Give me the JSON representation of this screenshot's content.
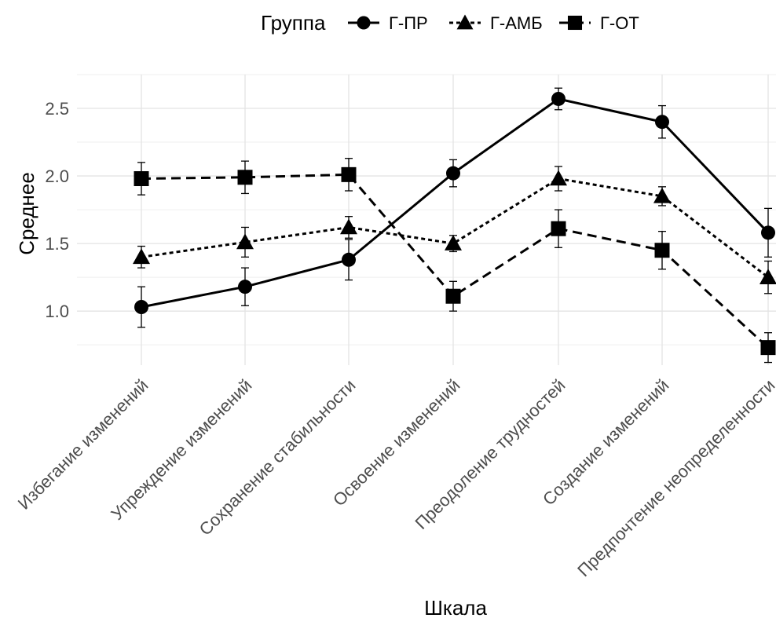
{
  "chart_data": {
    "type": "line",
    "xlabel": "Шкала",
    "ylabel": "Среднее",
    "categories": [
      "Избегание изменений",
      "Упреждение изменений",
      "Сохранение стабильности",
      "Освоение изменений",
      "Преодоление трудностей",
      "Создание изменений",
      "Предпочтение неопределенности"
    ],
    "y_ticks": [
      "1.0",
      "1.5",
      "2.0",
      "2.5"
    ],
    "ylim": [
      0.6,
      2.75
    ],
    "grid": true,
    "legend": {
      "title": "Группа",
      "position": "top"
    },
    "series": [
      {
        "name": "Г-ПР",
        "marker": "circle",
        "dash": "solid",
        "values": [
          1.03,
          1.18,
          1.38,
          2.02,
          2.57,
          2.4,
          1.58
        ],
        "err": [
          0.15,
          0.14,
          0.15,
          0.1,
          0.08,
          0.12,
          0.18
        ]
      },
      {
        "name": "Г-АМБ",
        "marker": "triangle",
        "dash": "dotted",
        "values": [
          1.4,
          1.51,
          1.62,
          1.5,
          1.98,
          1.85,
          1.25
        ],
        "err": [
          0.08,
          0.11,
          0.08,
          0.06,
          0.09,
          0.07,
          0.12
        ]
      },
      {
        "name": "Г-ОТ",
        "marker": "square",
        "dash": "dashed",
        "values": [
          1.98,
          1.99,
          2.01,
          1.11,
          1.61,
          1.45,
          0.73
        ],
        "err": [
          0.12,
          0.12,
          0.12,
          0.11,
          0.14,
          0.14,
          0.11
        ]
      }
    ]
  }
}
